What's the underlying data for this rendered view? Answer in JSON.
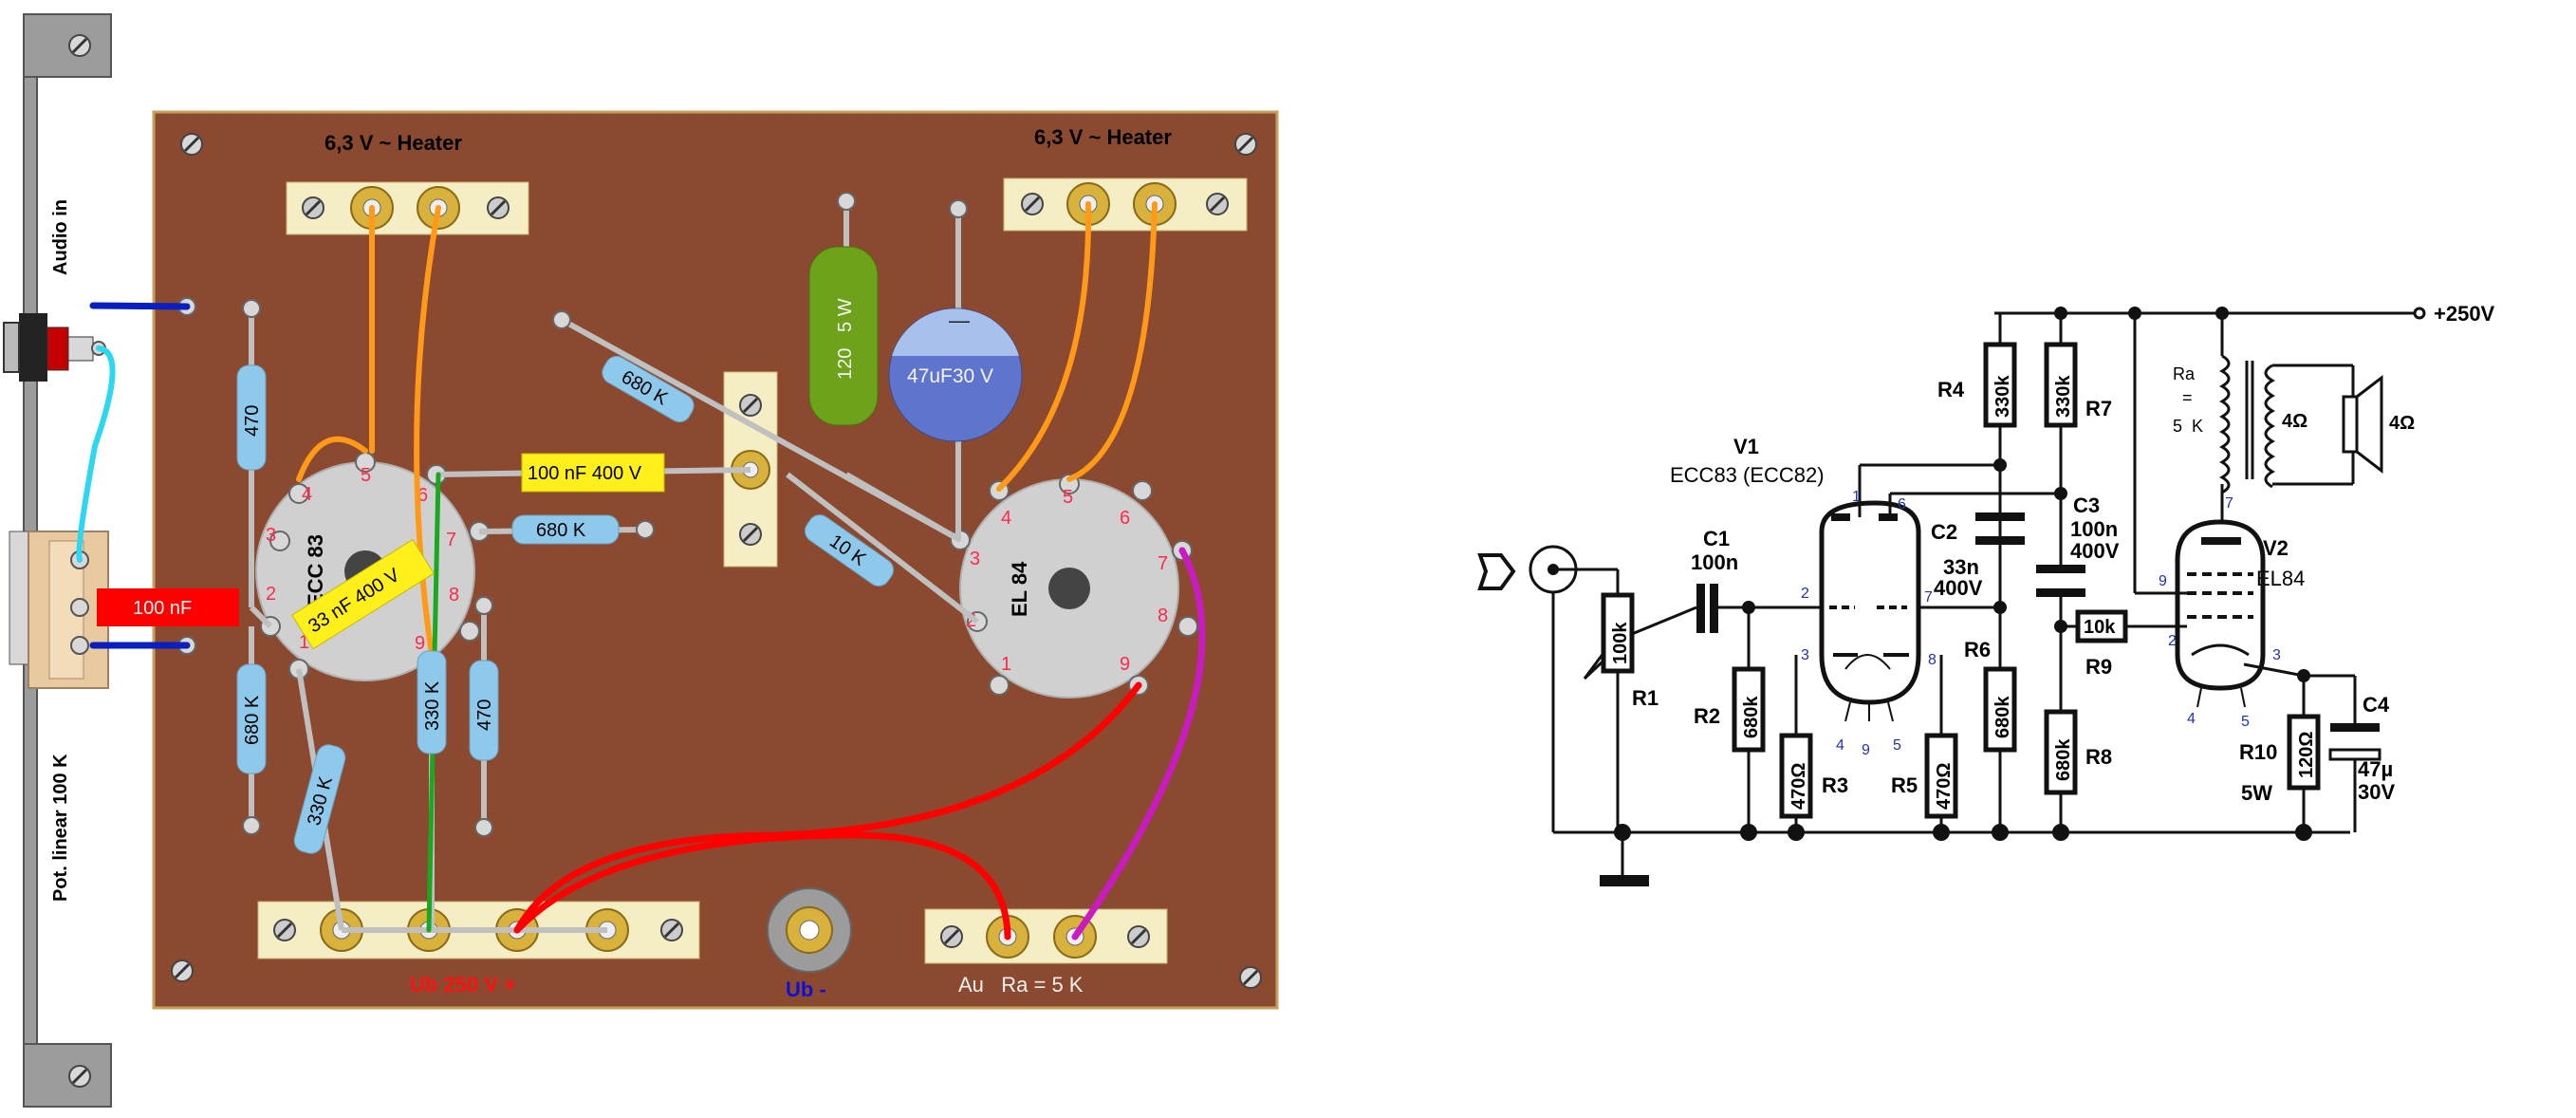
{
  "layout_panel": {
    "left_labels": {
      "audio_in": "Audio in",
      "pot": "Pot. linear 100 K"
    },
    "board": {
      "heater_left": "6,3 V ~ Heater",
      "heater_right": "6,3 V ~ Heater",
      "ub_plus": "Ub 250 V  +",
      "ub_minus": "Ub -",
      "output": "Au   Ra = 5 K"
    },
    "tubes": {
      "v1": {
        "name": "ECC 83",
        "pins": [
          "1",
          "2",
          "3",
          "4",
          "5",
          "6",
          "7",
          "8",
          "9"
        ]
      },
      "v2": {
        "name": "EL 84",
        "pins": [
          "1",
          "2",
          "3",
          "4",
          "5",
          "6",
          "7",
          "8",
          "9"
        ]
      }
    },
    "components": {
      "r_470_top": "470",
      "r_680k_left": "680 K",
      "r_330k_bottom": "330 K",
      "r_330k_mid": "330 K",
      "r_470_mid": "470",
      "r_680k_mid": "680 K",
      "r_680k_diag": "680 K",
      "r_10k": "10 K",
      "r_120_5w": "120   5 W",
      "c_47uf": "47uF30 V",
      "c_100nf_red": "100 nF",
      "c_100nf_400v": "100 nF 400 V",
      "c_33nf_400v": "33 nF 400 V"
    },
    "colors": {
      "board": "#8b4a2f",
      "terminal_strip": "#f5eec4",
      "resistor": "#8ec9ec",
      "cap_yellow": "#ffef1a",
      "cap_red": "#ff0000",
      "heater_wire": "#ff9a18",
      "signal_wire": "#2bd8ef",
      "ground_wire": "#0a1fbf",
      "power_wire": "#ff0000",
      "out_wire": "#c81cc0",
      "green_wire": "#1aa820",
      "electrolytic": "#5f74cc",
      "power_res": "#6ea21a"
    }
  },
  "schematic": {
    "supply": "+250V",
    "v1": {
      "name": "V1",
      "type": "ECC83 (ECC82)",
      "pins": [
        "1",
        "6",
        "2",
        "7",
        "3",
        "8",
        "4",
        "9",
        "5"
      ]
    },
    "v2": {
      "name": "V2",
      "type": "EL84",
      "pins": [
        "7",
        "9",
        "2",
        "3",
        "4",
        "5"
      ]
    },
    "parts": {
      "r1": {
        "ref": "R1",
        "value": "100k"
      },
      "r2": {
        "ref": "R2",
        "value": "680k"
      },
      "r3": {
        "ref": "R3",
        "value": "470Ω"
      },
      "r4": {
        "ref": "R4",
        "value": "330k"
      },
      "r5": {
        "ref": "R5",
        "value": "470Ω"
      },
      "r6": {
        "ref": "R6",
        "value": "680k"
      },
      "r7": {
        "ref": "R7",
        "value": "330k"
      },
      "r8": {
        "ref": "R8",
        "value": "680k"
      },
      "r9": {
        "ref": "R9",
        "value": "10k"
      },
      "r10": {
        "ref": "R10",
        "value": "120Ω",
        "extra": "5W"
      },
      "c1": {
        "ref": "C1",
        "value": "100n"
      },
      "c2": {
        "ref": "C2",
        "value1": "33n",
        "value2": "400V"
      },
      "c3": {
        "ref": "C3",
        "value1": "100n",
        "value2": "400V"
      },
      "c4": {
        "ref": "C4",
        "value1": "47µ",
        "value2": "30V"
      }
    },
    "transformer": {
      "ra1": "Ra",
      "ra2": "=",
      "ra3": "5  K",
      "sec": "4Ω",
      "spk": "4Ω"
    }
  }
}
